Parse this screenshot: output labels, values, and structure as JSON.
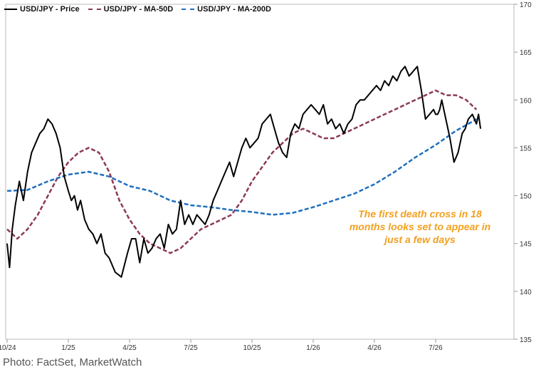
{
  "legend": {
    "price": "USD/JPY - Price",
    "ma50": "USD/JPY - MA-50D",
    "ma200": "USD/JPY - MA-200D"
  },
  "annotation": "The first death cross in 18 months looks set to appear in just a few days",
  "source": "Photo: FactSet, MarketWatch",
  "colors": {
    "price": "#000000",
    "ma50": "#8B3A55",
    "ma200": "#1E6FBF",
    "annotation": "#F2A01E",
    "grid": "#cccccc"
  },
  "chart_data": {
    "type": "line",
    "title": "",
    "xlabel": "",
    "ylabel": "",
    "x_ticks": [
      "10/24",
      "1/25",
      "4/25",
      "7/25",
      "10/25",
      "1/26",
      "4/26",
      "7/26"
    ],
    "x_range": [
      0,
      23.5
    ],
    "ylim": [
      135,
      170
    ],
    "y_ticks": [
      135,
      140,
      145,
      150,
      155,
      160,
      165,
      170
    ],
    "grid": false,
    "legend_position": "top-left",
    "series": [
      {
        "name": "USD/JPY - Price",
        "style": "solid",
        "x": [
          0,
          0.12,
          0.25,
          0.4,
          0.6,
          0.8,
          1.0,
          1.2,
          1.4,
          1.6,
          1.8,
          2.0,
          2.2,
          2.4,
          2.6,
          2.8,
          3.0,
          3.15,
          3.3,
          3.45,
          3.6,
          3.8,
          4.0,
          4.2,
          4.4,
          4.6,
          4.8,
          5.0,
          5.3,
          5.6,
          5.9,
          6.1,
          6.3,
          6.5,
          6.7,
          6.9,
          7.1,
          7.3,
          7.5,
          7.7,
          7.9,
          8.1,
          8.3,
          8.5,
          8.7,
          8.9,
          9.1,
          9.3,
          9.5,
          9.7,
          9.9,
          10.1,
          10.3,
          10.5,
          10.7,
          10.9,
          11.1,
          11.3,
          11.5,
          11.7,
          11.9,
          12.1,
          12.3,
          12.5,
          12.7,
          12.9,
          13.1,
          13.3,
          13.5,
          13.7,
          13.9,
          14.1,
          14.3,
          14.5,
          14.7,
          14.9,
          15.1,
          15.3,
          15.5,
          15.7,
          15.9,
          16.1,
          16.3,
          16.5,
          16.7,
          16.9,
          17.1,
          17.3,
          17.5,
          17.7,
          17.9,
          18.1,
          18.3,
          18.5,
          18.7,
          18.9,
          19.1,
          19.3,
          19.5,
          19.7,
          19.9,
          20.1,
          20.3,
          20.5,
          20.7,
          20.9,
          21.0,
          21.1,
          21.2,
          21.3,
          21.5,
          21.7,
          21.9,
          22.1,
          22.2,
          22.3,
          22.45,
          22.6,
          22.8,
          23.0,
          23.1,
          23.2
        ],
        "values": [
          145.0,
          142.5,
          146.5,
          149.0,
          151.5,
          149.5,
          152.5,
          154.5,
          155.5,
          156.5,
          157.0,
          158.0,
          157.5,
          156.5,
          155.0,
          152.0,
          150.5,
          149.5,
          150.0,
          148.5,
          149.5,
          147.5,
          146.5,
          146.0,
          145.0,
          146.0,
          144.0,
          143.5,
          142.0,
          141.5,
          144.0,
          145.5,
          145.5,
          143.0,
          145.5,
          144.0,
          144.5,
          145.5,
          146.0,
          144.5,
          147.0,
          146.0,
          146.5,
          149.5,
          147.0,
          148.0,
          147.0,
          148.0,
          147.5,
          147.0,
          148.0,
          149.5,
          150.5,
          151.5,
          152.5,
          153.5,
          152.0,
          153.5,
          155.0,
          156.0,
          155.0,
          155.5,
          156.0,
          157.5,
          158.0,
          158.5,
          157.0,
          155.5,
          154.5,
          154.0,
          156.5,
          157.5,
          157.0,
          158.5,
          159.0,
          159.5,
          159.0,
          158.5,
          159.5,
          157.5,
          158.0,
          157.0,
          157.5,
          156.5,
          157.5,
          158.0,
          159.5,
          160.0,
          160.0,
          160.5,
          161.0,
          161.5,
          161.0,
          162.0,
          161.5,
          162.5,
          162.0,
          163.0,
          163.5,
          162.5,
          163.0,
          163.5,
          161.0,
          158.0,
          158.5,
          159.0,
          158.5,
          158.5,
          159.0,
          160.0,
          158.0,
          156.0,
          153.5,
          154.5,
          155.5,
          156.5,
          157.0,
          158.0,
          158.5,
          157.5,
          158.5,
          157.0
        ]
      },
      {
        "name": "USD/JPY - MA-50D",
        "style": "dashed",
        "x": [
          0,
          0.5,
          1.0,
          1.5,
          2.0,
          2.5,
          3.0,
          3.5,
          4.0,
          4.5,
          5.0,
          5.5,
          6.0,
          6.5,
          7.0,
          7.5,
          8.0,
          8.5,
          9.0,
          9.5,
          10.0,
          10.5,
          11.0,
          11.5,
          12.0,
          12.5,
          13.0,
          13.5,
          14.0,
          14.5,
          15.0,
          15.5,
          16.0,
          16.5,
          17.0,
          17.5,
          18.0,
          18.5,
          19.0,
          19.5,
          20.0,
          20.5,
          21.0,
          21.5,
          22.0,
          22.5,
          23.0
        ],
        "values": [
          146.5,
          145.5,
          146.5,
          148.0,
          150.0,
          152.0,
          153.5,
          154.5,
          155.0,
          154.5,
          152.5,
          149.5,
          147.5,
          146.0,
          145.0,
          144.5,
          144.0,
          144.5,
          145.5,
          146.5,
          147.0,
          147.5,
          148.0,
          149.5,
          151.5,
          153.0,
          154.5,
          155.5,
          156.5,
          157.0,
          156.5,
          156.0,
          156.0,
          156.5,
          157.0,
          157.5,
          158.0,
          158.5,
          159.0,
          159.5,
          160.0,
          160.5,
          161.0,
          160.5,
          160.5,
          160.0,
          159.0
        ]
      },
      {
        "name": "USD/JPY - MA-200D",
        "style": "dashed",
        "x": [
          0,
          1.0,
          2.0,
          3.0,
          4.0,
          5.0,
          6.0,
          7.0,
          8.0,
          9.0,
          10.0,
          11.0,
          12.0,
          13.0,
          14.0,
          15.0,
          16.0,
          17.0,
          18.0,
          19.0,
          20.0,
          21.0,
          22.0,
          22.6,
          23.0
        ],
        "values": [
          150.5,
          150.6,
          151.5,
          152.2,
          152.5,
          152.0,
          151.0,
          150.5,
          149.5,
          149.0,
          148.8,
          148.5,
          148.3,
          148.0,
          148.2,
          148.8,
          149.5,
          150.2,
          151.2,
          152.5,
          154.0,
          155.3,
          156.8,
          157.5,
          158.0
        ]
      }
    ]
  }
}
